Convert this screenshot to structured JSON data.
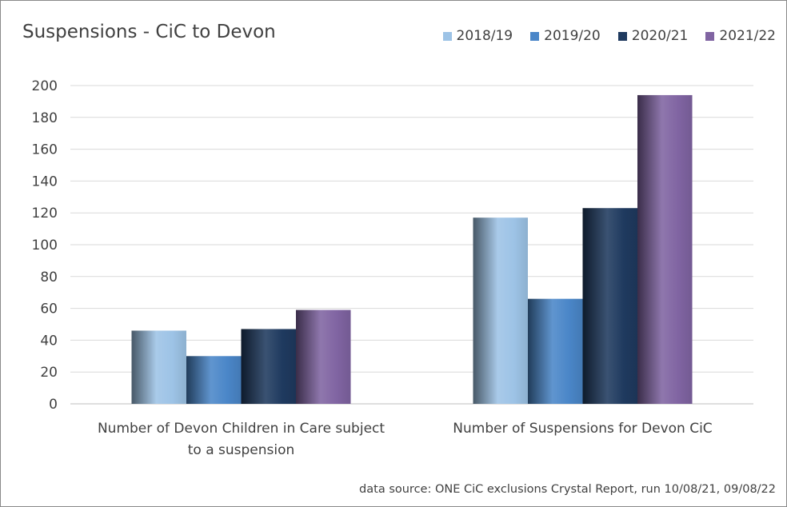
{
  "chart_data": {
    "type": "bar",
    "title": "Suspensions - CiC to Devon",
    "categories": [
      "Number of Devon Children in Care subject to a suspension",
      "Number of Suspensions for Devon CiC"
    ],
    "category_lines": [
      [
        "Number of Devon Children in Care subject",
        "to a suspension"
      ],
      [
        "Number of Suspensions for Devon CiC"
      ]
    ],
    "series": [
      {
        "name": "2018/19",
        "values": [
          46,
          117
        ],
        "color": "#9dc3e6"
      },
      {
        "name": "2019/20",
        "values": [
          30,
          66
        ],
        "color": "#4a86c8"
      },
      {
        "name": "2020/21",
        "values": [
          47,
          123
        ],
        "color": "#1f3a5f"
      },
      {
        "name": "2021/22",
        "values": [
          59,
          194
        ],
        "color": "#8064a2"
      }
    ],
    "ylim": [
      0,
      200
    ],
    "ytick_step": 20,
    "grid": true,
    "legend_position": "top-right",
    "xlabel": "",
    "ylabel": ""
  },
  "footer": {
    "source": "data source: ONE CiC exclusions Crystal Report, run 10/08/21, 09/08/22"
  }
}
